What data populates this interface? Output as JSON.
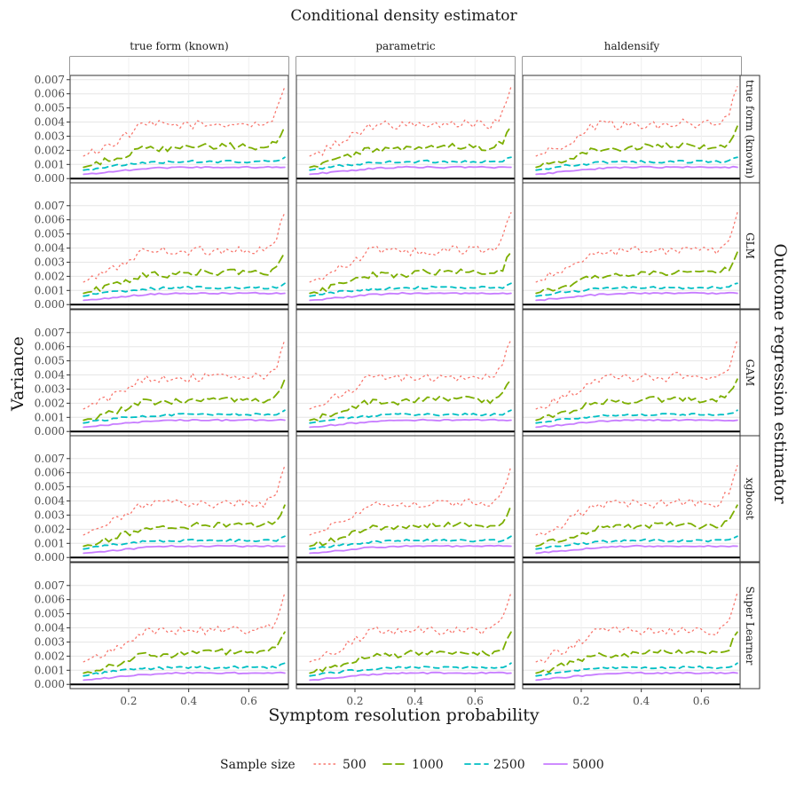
{
  "chart_data": {
    "type": "line",
    "title": "Conditional density estimator",
    "right_title": "Outcome regression estimator",
    "xlabel": "Symptom resolution probability",
    "ylabel": "Variance",
    "x_range": [
      0.05,
      0.72
    ],
    "x_ticks": [
      0.2,
      0.4,
      0.6
    ],
    "x_tick_labels": [
      "0.2",
      "0.4",
      "0.6"
    ],
    "ylim": [
      -0.0003,
      0.0073
    ],
    "y_ticks": [
      0.0,
      0.001,
      0.002,
      0.003,
      0.004,
      0.005,
      0.006,
      0.007
    ],
    "y_tick_labels": [
      "0.000",
      "0.001",
      "0.002",
      "0.003",
      "0.004",
      "0.005",
      "0.006",
      "0.007"
    ],
    "column_facets": [
      "true form (known)",
      "parametric",
      "haldensify"
    ],
    "row_facets": [
      "true form (known)",
      "GLM",
      "GAM",
      "xgboost",
      "Super Learner"
    ],
    "legend": {
      "title": "Sample size",
      "position": "bottom",
      "entries": [
        "500",
        "1000",
        "2500",
        "5000"
      ]
    },
    "series": [
      {
        "name": "500",
        "color": "#F8766D",
        "dash": "dotted",
        "x": [
          0.05,
          0.15,
          0.25,
          0.35,
          0.45,
          0.55,
          0.65,
          0.69,
          0.72
        ],
        "values": [
          0.0016,
          0.0025,
          0.0038,
          0.0038,
          0.0038,
          0.0039,
          0.0038,
          0.0045,
          0.0065
        ]
      },
      {
        "name": "1000",
        "color": "#7CAE00",
        "dash": "longdash",
        "x": [
          0.05,
          0.15,
          0.25,
          0.35,
          0.45,
          0.55,
          0.65,
          0.69,
          0.72
        ],
        "values": [
          0.0008,
          0.0014,
          0.0021,
          0.0021,
          0.0023,
          0.0023,
          0.0022,
          0.0025,
          0.0037
        ]
      },
      {
        "name": "2500",
        "color": "#00BFC4",
        "dash": "dashed",
        "x": [
          0.05,
          0.15,
          0.25,
          0.35,
          0.45,
          0.55,
          0.65,
          0.69,
          0.72
        ],
        "values": [
          0.0006,
          0.0009,
          0.0011,
          0.0012,
          0.0012,
          0.0012,
          0.0012,
          0.0012,
          0.0015
        ]
      },
      {
        "name": "5000",
        "color": "#C77CFF",
        "dash": "solid",
        "x": [
          0.05,
          0.15,
          0.25,
          0.35,
          0.45,
          0.55,
          0.65,
          0.69,
          0.72
        ],
        "values": [
          0.0003,
          0.0005,
          0.0007,
          0.0008,
          0.0008,
          0.0008,
          0.0008,
          0.0008,
          0.0008
        ]
      }
    ]
  }
}
